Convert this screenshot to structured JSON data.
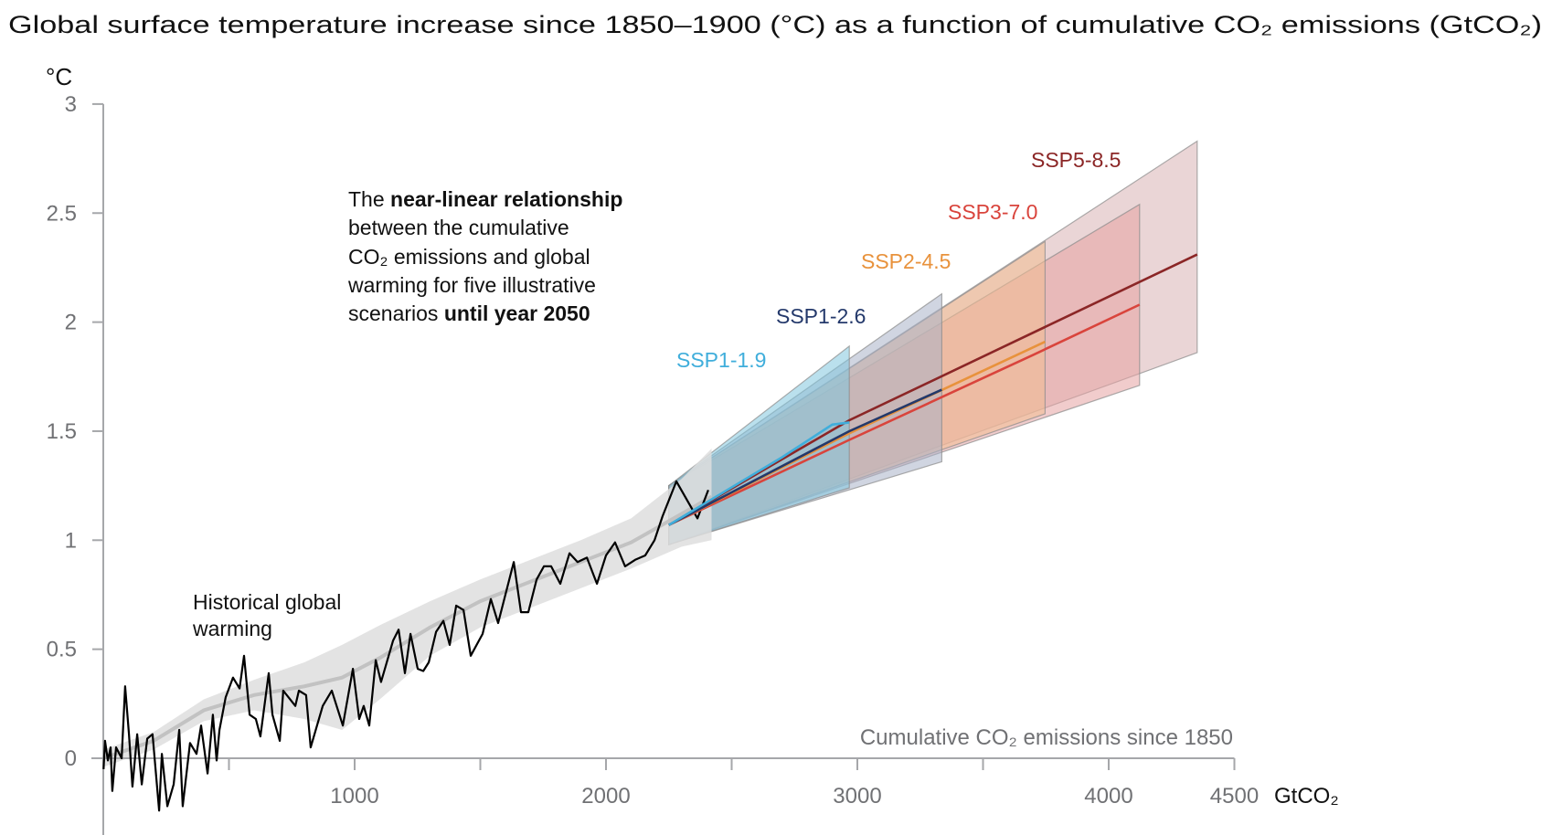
{
  "chart_data": {
    "type": "line",
    "title": "Global surface temperature increase since 1850–1900 (°C) as a function of cumulative CO₂ emissions (GtCO₂)",
    "ylabel": "°C",
    "xlabel": "Cumulative CO₂ emissions since 1850",
    "xunit": "GtCO₂",
    "xlim": [
      0,
      4500
    ],
    "ylim": [
      -0.33,
      3
    ],
    "grid": false,
    "xticks": [
      500,
      1000,
      1500,
      2000,
      2500,
      3000,
      3500,
      4000,
      4500
    ],
    "xtick_labels": [
      "1000",
      "2000",
      "3000",
      "4000",
      "4500"
    ],
    "xtick_label_values": [
      1000,
      2000,
      3000,
      4000,
      4500
    ],
    "yticks": [
      0,
      0.5,
      1,
      1.5,
      2,
      2.5,
      3
    ],
    "ytick_labels": [
      "0",
      "0.5",
      "1",
      "1.5",
      "2",
      "2.5",
      "3"
    ],
    "annotation": {
      "line1_a": "The ",
      "line1_b": "near-linear relationship",
      "line2": "between the cumulative",
      "line3": "CO₂ emissions and global",
      "line4": "warming for five illustrative",
      "line5_a": "scenarios ",
      "line5_b": "until year 2050"
    },
    "historical": {
      "label_line1": "Historical global",
      "label_line2": "warming",
      "color": "#000000",
      "points": [
        [
          1,
          -0.05
        ],
        [
          7,
          0.08
        ],
        [
          18,
          -0.01
        ],
        [
          29,
          0.05
        ],
        [
          36,
          -0.15
        ],
        [
          51,
          0.05
        ],
        [
          73,
          0
        ],
        [
          87,
          0.33
        ],
        [
          102,
          0.11
        ],
        [
          116,
          -0.13
        ],
        [
          135,
          0.11
        ],
        [
          153,
          -0.12
        ],
        [
          175,
          0.09
        ],
        [
          196,
          0.11
        ],
        [
          222,
          -0.24
        ],
        [
          233,
          0.02
        ],
        [
          255,
          -0.22
        ],
        [
          280,
          -0.12
        ],
        [
          302,
          0.13
        ],
        [
          316,
          -0.22
        ],
        [
          345,
          0.07
        ],
        [
          371,
          0.02
        ],
        [
          389,
          0.15
        ],
        [
          415,
          -0.07
        ],
        [
          436,
          0.2
        ],
        [
          451,
          -0.01
        ],
        [
          462,
          0.13
        ],
        [
          487,
          0.28
        ],
        [
          516,
          0.37
        ],
        [
          542,
          0.32
        ],
        [
          560,
          0.47
        ],
        [
          582,
          0.2
        ],
        [
          607,
          0.18
        ],
        [
          625,
          0.1
        ],
        [
          658,
          0.39
        ],
        [
          673,
          0.2
        ],
        [
          702,
          0.08
        ],
        [
          716,
          0.31
        ],
        [
          764,
          0.24
        ],
        [
          778,
          0.31
        ],
        [
          807,
          0.29
        ],
        [
          825,
          0.05
        ],
        [
          873,
          0.24
        ],
        [
          909,
          0.31
        ],
        [
          953,
          0.15
        ],
        [
          993,
          0.41
        ],
        [
          1018,
          0.18
        ],
        [
          1036,
          0.24
        ],
        [
          1058,
          0.15
        ],
        [
          1084,
          0.45
        ],
        [
          1105,
          0.35
        ],
        [
          1153,
          0.54
        ],
        [
          1175,
          0.59
        ],
        [
          1200,
          0.39
        ],
        [
          1222,
          0.57
        ],
        [
          1251,
          0.41
        ],
        [
          1273,
          0.4
        ],
        [
          1295,
          0.44
        ],
        [
          1324,
          0.58
        ],
        [
          1353,
          0.63
        ],
        [
          1378,
          0.52
        ],
        [
          1404,
          0.7
        ],
        [
          1433,
          0.68
        ],
        [
          1462,
          0.47
        ],
        [
          1509,
          0.57
        ],
        [
          1542,
          0.73
        ],
        [
          1571,
          0.62
        ],
        [
          1633,
          0.9
        ],
        [
          1662,
          0.67
        ],
        [
          1691,
          0.67
        ],
        [
          1724,
          0.82
        ],
        [
          1753,
          0.88
        ],
        [
          1782,
          0.88
        ],
        [
          1818,
          0.8
        ],
        [
          1855,
          0.94
        ],
        [
          1887,
          0.9
        ],
        [
          1924,
          0.92
        ],
        [
          1964,
          0.8
        ],
        [
          2000,
          0.93
        ],
        [
          2036,
          0.99
        ],
        [
          2076,
          0.88
        ],
        [
          2116,
          0.91
        ],
        [
          2156,
          0.93
        ],
        [
          2193,
          1.0
        ],
        [
          2225,
          1.11
        ],
        [
          2280,
          1.27
        ],
        [
          2364,
          1.1
        ],
        [
          2407,
          1.23
        ]
      ],
      "smoothed": {
        "color": "#c2c2c2",
        "band_color": "#dedede",
        "x": [
          0,
          200,
          400,
          600,
          800,
          950,
          1100,
          1300,
          1500,
          1700,
          1900,
          2100,
          2300,
          2420
        ],
        "mid": [
          0.0,
          0.08,
          0.22,
          0.29,
          0.33,
          0.37,
          0.46,
          0.6,
          0.72,
          0.81,
          0.9,
          0.99,
          1.12,
          1.2
        ],
        "low": [
          -0.04,
          0.04,
          0.17,
          0.22,
          0.18,
          0.13,
          0.27,
          0.47,
          0.6,
          0.69,
          0.78,
          0.87,
          0.97,
          1.0
        ],
        "high": [
          0.04,
          0.12,
          0.27,
          0.36,
          0.44,
          0.52,
          0.61,
          0.72,
          0.82,
          0.91,
          1.0,
          1.1,
          1.28,
          1.42
        ]
      }
    },
    "series": [
      {
        "name": "SSP5-8.5",
        "color": "#8b2626",
        "band_color": "#d8b3b5",
        "median": [
          [
            2250,
            1.07
          ],
          [
            2968,
            1.55
          ],
          [
            4352,
            2.31
          ]
        ],
        "band_start": [
          0.98,
          1.25
        ],
        "band_end": [
          1.86,
          2.83
        ]
      },
      {
        "name": "SSP3-7.0",
        "color": "#d9443c",
        "band_color": "#e6a3a2",
        "median": [
          [
            2250,
            1.07
          ],
          [
            2968,
            1.46
          ],
          [
            3700,
            1.85
          ],
          [
            4123,
            2.08
          ]
        ],
        "band_start": [
          0.98,
          1.25
        ],
        "band_end": [
          1.71,
          2.54
        ]
      },
      {
        "name": "SSP2-4.5",
        "color": "#e8923c",
        "band_color": "#f0bd92",
        "median": [
          [
            2250,
            1.07
          ],
          [
            2968,
            1.49
          ],
          [
            3747,
            1.91
          ]
        ],
        "band_start": [
          0.98,
          1.25
        ],
        "band_end": [
          1.58,
          2.37
        ]
      },
      {
        "name": "SSP1-2.6",
        "color": "#24396b",
        "band_color": "#aab3c9",
        "median": [
          [
            2250,
            1.07
          ],
          [
            2968,
            1.5
          ],
          [
            3336,
            1.69
          ]
        ],
        "band_start": [
          0.98,
          1.25
        ],
        "band_end": [
          1.36,
          2.13
        ]
      },
      {
        "name": "SSP1-1.9",
        "color": "#40aedb",
        "band_color": "#82c6df",
        "median": [
          [
            2250,
            1.07
          ],
          [
            2700,
            1.38
          ],
          [
            2900,
            1.53
          ],
          [
            2968,
            1.54
          ]
        ],
        "band_start": [
          0.98,
          1.25
        ],
        "band_end": [
          1.24,
          1.89
        ]
      }
    ]
  }
}
